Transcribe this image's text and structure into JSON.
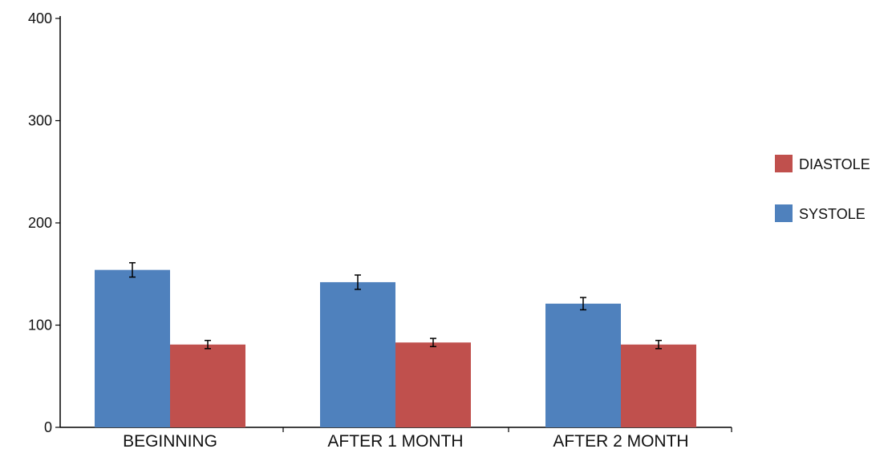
{
  "chart_data": {
    "type": "bar",
    "title": "",
    "xlabel": "",
    "ylabel": "",
    "categories": [
      "BEGINNING",
      "AFTER 1 MONTH",
      "AFTER 2 MONTH"
    ],
    "series": [
      {
        "name": "SYSTOLE",
        "values": [
          154,
          142,
          121
        ],
        "errors": [
          7,
          7,
          6
        ],
        "color": "#4f81bd"
      },
      {
        "name": "DIASTOLE",
        "values": [
          81,
          83,
          81
        ],
        "errors": [
          4,
          4,
          4
        ],
        "color": "#c0504d"
      }
    ],
    "ylim": [
      0,
      400
    ],
    "yticks": [
      0,
      100,
      200,
      300,
      400
    ],
    "grid": false,
    "legend": {
      "position": "right",
      "order": [
        "DIASTOLE",
        "SYSTOLE"
      ]
    }
  }
}
